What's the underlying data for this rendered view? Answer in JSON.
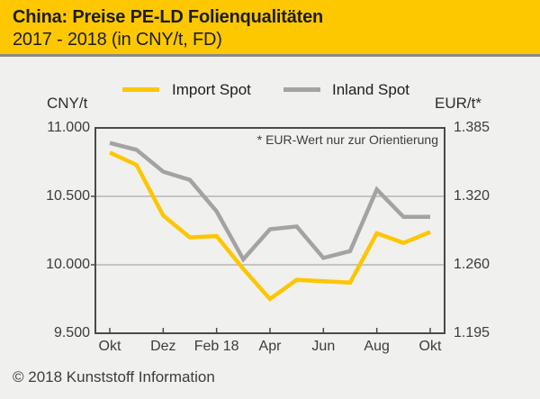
{
  "header": {
    "title": "China: Preise PE-LD Folienqualitäten",
    "subtitle": "2017 - 2018 (in CNY/t, FD)"
  },
  "footer": {
    "copyright": "© 2018 Kunststoff Information"
  },
  "chart_data": {
    "type": "line",
    "title": "China: Preise PE-LD Folienqualitäten 2017 - 2018 (in CNY/t, FD)",
    "x_axis": {
      "points_count": 13,
      "tick_labels": [
        "Okt",
        "Dez",
        "Feb 18",
        "Apr",
        "Jun",
        "Aug",
        "Okt"
      ],
      "tick_indices": [
        0,
        2,
        4,
        6,
        8,
        10,
        12
      ]
    },
    "y_axis_left": {
      "label": "CNY/t",
      "tick_labels": [
        "11.000",
        "10.500",
        "10.000",
        "9.500"
      ],
      "tick_values": [
        11000,
        10500,
        10000,
        9500
      ],
      "range": [
        9500,
        11000
      ],
      "gridline_values": [
        10500,
        10000
      ]
    },
    "y_axis_right": {
      "label": "EUR/t*",
      "tick_labels": [
        "1.385",
        "1.320",
        "1.260",
        "1.195"
      ]
    },
    "series": [
      {
        "name": "Import Spot",
        "color": "#fdc600",
        "values": [
          10820,
          10730,
          10360,
          10200,
          10210,
          9970,
          9750,
          9890,
          9880,
          9870,
          10230,
          10160,
          10240
        ]
      },
      {
        "name": "Inland Spot",
        "color": "#a3a3a3",
        "values": [
          10890,
          10840,
          10680,
          10620,
          10390,
          10040,
          10260,
          10280,
          10050,
          10100,
          10550,
          10350,
          10350
        ]
      }
    ],
    "annotation": "* EUR-Wert nur zur Orientierung",
    "grid": true,
    "legend_position": "top"
  },
  "colors": {
    "header_background": "#fdc800",
    "page_background": "#f0f0ee",
    "separator": "#8a8a8a",
    "plot_border": "#4a4a4a",
    "gridline": "#b5b5b5",
    "text": "#3c3c3c"
  }
}
